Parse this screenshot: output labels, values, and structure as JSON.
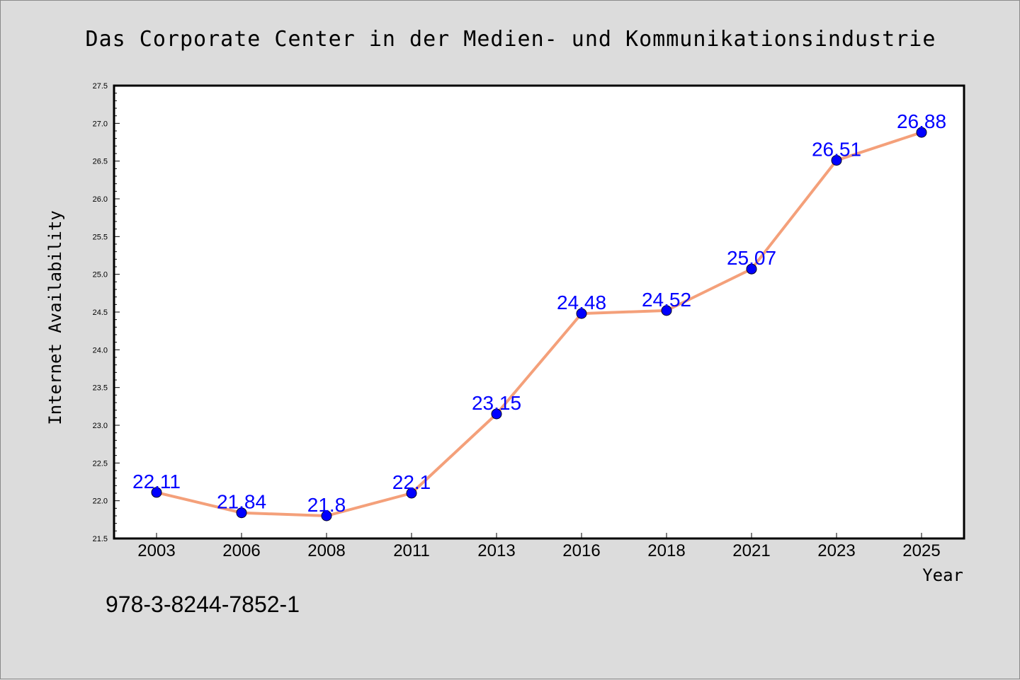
{
  "chart_data": {
    "type": "line",
    "title": "Das Corporate Center in der Medien- und Kommunikationsindustrie",
    "xlabel": "Year",
    "ylabel": "Internet Availability",
    "categories": [
      "2003",
      "2006",
      "2008",
      "2011",
      "2013",
      "2016",
      "2018",
      "2021",
      "2023",
      "2025"
    ],
    "series": [
      {
        "values": [
          22.11,
          21.84,
          21.8,
          22.1,
          23.15,
          24.48,
          24.52,
          25.07,
          26.51,
          26.88
        ]
      }
    ],
    "data_labels": [
      "22.11",
      "21.84",
      "21.8",
      "22.1",
      "23.15",
      "24.48",
      "24.52",
      "25.07",
      "26.51",
      "26.88"
    ],
    "ylim": [
      21.5,
      27.5
    ],
    "yticks": [
      "21.5",
      "22.0",
      "22.5",
      "23.0",
      "23.5",
      "24.0",
      "24.5",
      "25.0",
      "25.5",
      "26.0",
      "26.5",
      "27.0",
      "27.5"
    ],
    "grid": false,
    "line_color": "#f4a07a",
    "marker_color": "#0000ff",
    "label_color": "#0000ff",
    "background": "#dcdcdc"
  },
  "footer": {
    "isbn": "978-3-8244-7852-1"
  }
}
